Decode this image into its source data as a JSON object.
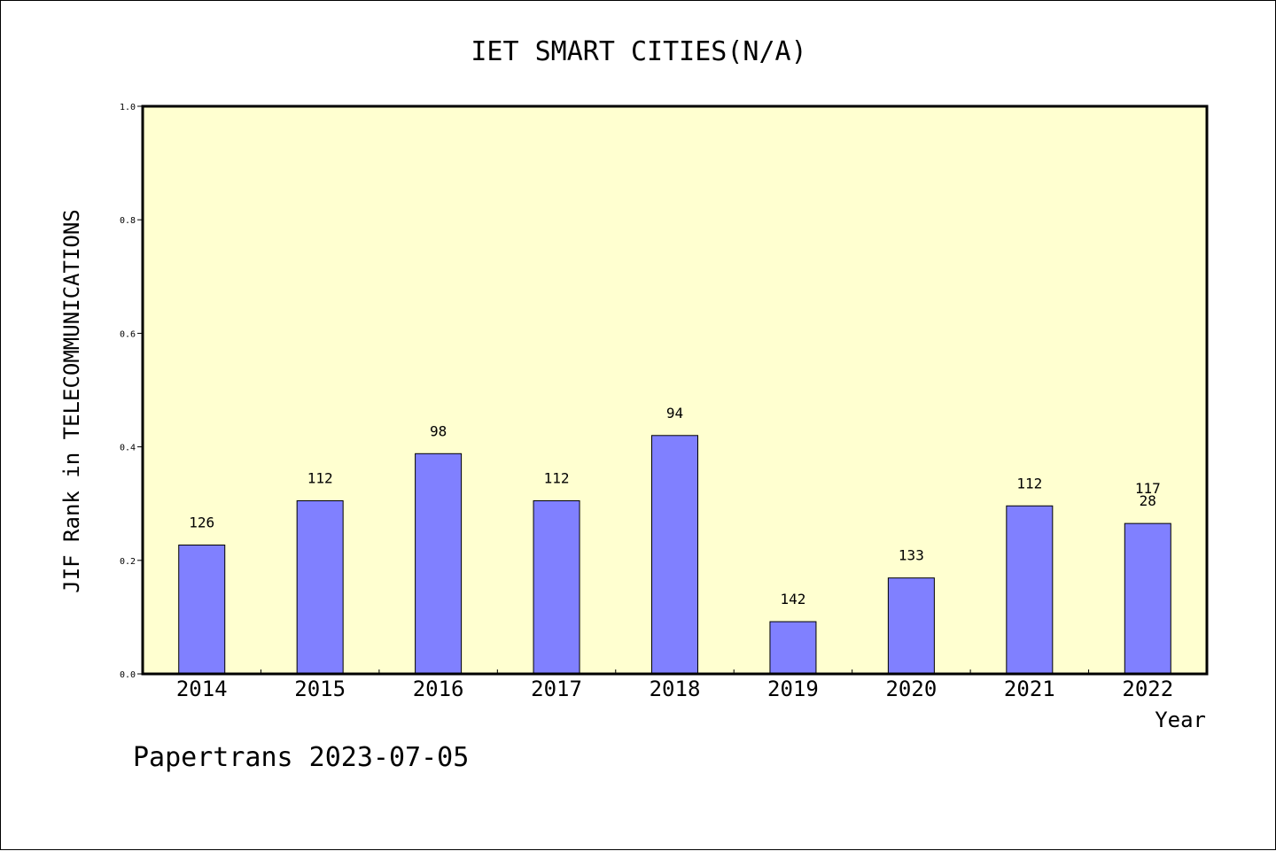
{
  "chart_data": {
    "type": "bar",
    "title": "IET SMART CITIES(N/A)",
    "ylabel": "JIF Rank in TELECOMMUNICATIONS",
    "xlabel": "Year",
    "categories": [
      "2014",
      "2015",
      "2016",
      "2017",
      "2018",
      "2019",
      "2020",
      "2021",
      "2022"
    ],
    "values": [
      0.227,
      0.305,
      0.388,
      0.305,
      0.42,
      0.092,
      0.169,
      0.296,
      0.265
    ],
    "bar_labels": [
      [
        "126"
      ],
      [
        "112"
      ],
      [
        "98"
      ],
      [
        "112"
      ],
      [
        "94"
      ],
      [
        "142"
      ],
      [
        "133"
      ],
      [
        "112"
      ],
      [
        "117",
        "28"
      ]
    ],
    "ylim": [
      0,
      1.0
    ],
    "yticks": [
      "0.0",
      "0.2",
      "0.4",
      "0.6",
      "0.8",
      "1.0"
    ],
    "colors": {
      "plot_bg": "#ffffd0",
      "bar": "#8080ff"
    }
  },
  "footer": {
    "text": "Papertrans 2023-07-05"
  }
}
